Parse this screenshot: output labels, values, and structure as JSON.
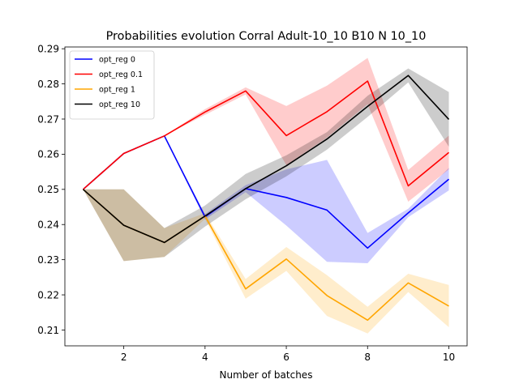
{
  "chart_data": {
    "type": "line",
    "title": "Probabilities evolution Corral Adult-10_10 B10 N 10_10",
    "xlabel": "Number of batches",
    "ylabel": "",
    "xlim": [
      0.55,
      10.45
    ],
    "ylim": [
      0.2055,
      0.2905
    ],
    "xticks": [
      2,
      4,
      6,
      8,
      10
    ],
    "yticks": [
      0.21,
      0.22,
      0.23,
      0.24,
      0.25,
      0.26,
      0.27,
      0.28,
      0.29
    ],
    "grid": false,
    "legend_position": "upper-left",
    "x": [
      1,
      2,
      3,
      4,
      5,
      6,
      7,
      8,
      9,
      10
    ],
    "series": [
      {
        "name": "opt_reg 0",
        "color": "#0000ff",
        "values": [
          0.25,
          0.2602,
          0.2652,
          0.2422,
          0.2502,
          0.2477,
          0.2441,
          0.2333,
          0.2433,
          0.2529
        ],
        "band_low": [
          0.25,
          0.2602,
          0.2652,
          0.2414,
          0.2492,
          0.2397,
          0.2294,
          0.229,
          0.2421,
          0.2497
        ],
        "band_high": [
          0.25,
          0.2602,
          0.2652,
          0.243,
          0.2512,
          0.2557,
          0.2584,
          0.2376,
          0.2445,
          0.2561
        ]
      },
      {
        "name": "opt_reg 0.1",
        "color": "#ff0000",
        "values": [
          0.25,
          0.2602,
          0.2652,
          0.272,
          0.278,
          0.2653,
          0.2721,
          0.2808,
          0.251,
          0.2605
        ],
        "band_low": [
          0.25,
          0.2602,
          0.2652,
          0.2712,
          0.277,
          0.2569,
          0.2647,
          0.2742,
          0.2465,
          0.2557
        ],
        "band_high": [
          0.25,
          0.2602,
          0.2652,
          0.2728,
          0.279,
          0.2737,
          0.2795,
          0.2874,
          0.2555,
          0.2653
        ]
      },
      {
        "name": "opt_reg 1",
        "color": "#ffa500",
        "values": [
          0.25,
          0.2398,
          0.2349,
          0.2424,
          0.2217,
          0.2302,
          0.2198,
          0.2128,
          0.2234,
          0.2168
        ],
        "band_low": [
          0.25,
          0.2296,
          0.2308,
          0.2416,
          0.2189,
          0.2268,
          0.214,
          0.209,
          0.2208,
          0.2108
        ],
        "band_high": [
          0.25,
          0.25,
          0.239,
          0.2432,
          0.2245,
          0.2336,
          0.2256,
          0.2166,
          0.226,
          0.2228
        ]
      },
      {
        "name": "opt_reg 10",
        "color": "#000000",
        "values": [
          0.25,
          0.2398,
          0.2349,
          0.2424,
          0.2502,
          0.2567,
          0.2643,
          0.2736,
          0.2824,
          0.2699
        ],
        "band_low": [
          0.25,
          0.2296,
          0.2308,
          0.2394,
          0.2472,
          0.2537,
          0.2613,
          0.2706,
          0.2804,
          0.2621
        ],
        "band_high": [
          0.25,
          0.25,
          0.239,
          0.2454,
          0.2544,
          0.2597,
          0.2663,
          0.2766,
          0.2844,
          0.2777
        ]
      }
    ]
  }
}
